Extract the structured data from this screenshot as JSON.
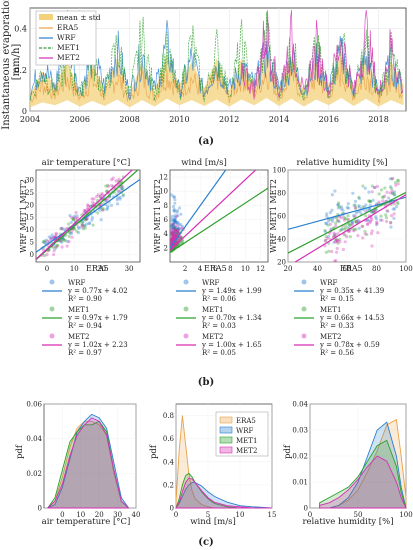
{
  "colors": {
    "era5": "#e8a24a",
    "band": "#f4d27a",
    "wrf": "#2a7fd1",
    "met1": "#2ca02c",
    "met2": "#d62fb5"
  },
  "panel_labels": {
    "a": "(a)",
    "b": "(b)",
    "c": "(c)"
  },
  "chart_data": [
    {
      "id": "a",
      "type": "line",
      "ylabel": "Instantaneous evaporation [mm/h]",
      "ylabel_lines": [
        "Instantaneous evaporation",
        "[mm/h]"
      ],
      "x_ticks": [
        "2004",
        "2006",
        "2008",
        "2010",
        "2012",
        "2014",
        "2016",
        "2018"
      ],
      "y_ticks": [
        "0",
        "0.2",
        "0.4"
      ],
      "ylim": [
        0,
        0.5
      ],
      "xlim": [
        2004,
        2019.1
      ],
      "legend": [
        "mean ± std",
        "ERA5",
        "WRF",
        "MET1",
        "MET2"
      ],
      "legend_position": "top-left",
      "series": [
        {
          "name": "ERA5",
          "x": [
            2004.0,
            2004.5,
            2005.0,
            2005.5,
            2006.0,
            2006.5,
            2007.0,
            2007.5,
            2008.0,
            2008.5,
            2009.0,
            2009.5,
            2010.0,
            2010.5,
            2011.0,
            2011.5,
            2012.0,
            2012.5,
            2013.0,
            2013.5,
            2014.0,
            2014.5,
            2015.0,
            2015.5,
            2016.0,
            2016.5,
            2017.0,
            2017.5,
            2018.0,
            2018.5,
            2019.0
          ],
          "y": [
            0.05,
            0.12,
            0.08,
            0.15,
            0.06,
            0.14,
            0.07,
            0.16,
            0.05,
            0.15,
            0.06,
            0.17,
            0.08,
            0.15,
            0.07,
            0.16,
            0.06,
            0.16,
            0.08,
            0.18,
            0.07,
            0.17,
            0.06,
            0.16,
            0.08,
            0.18,
            0.07,
            0.17,
            0.06,
            0.15,
            0.08
          ]
        },
        {
          "name": "WRF",
          "x": [
            2004.0,
            2004.5,
            2005.0,
            2005.5,
            2006.0,
            2006.5,
            2007.0,
            2007.5,
            2008.0,
            2008.5,
            2009.0,
            2009.5,
            2010.0,
            2010.5,
            2011.0,
            2011.5,
            2012.0,
            2012.5,
            2013.0,
            2013.5,
            2014.0,
            2014.5,
            2015.0,
            2015.5,
            2016.0,
            2016.5,
            2017.0,
            2017.5,
            2018.0,
            2018.5,
            2019.0
          ],
          "y": [
            0.08,
            0.22,
            0.1,
            0.4,
            0.09,
            0.25,
            0.11,
            0.28,
            0.08,
            0.26,
            0.1,
            0.3,
            0.09,
            0.24,
            0.08,
            0.22,
            0.1,
            0.2,
            0.12,
            0.26,
            0.1,
            0.24,
            0.09,
            0.22,
            0.11,
            0.26,
            0.1,
            0.24,
            0.09,
            0.22,
            0.1
          ]
        },
        {
          "name": "MET1",
          "x": [
            2004.0,
            2004.5,
            2005.0,
            2005.5,
            2006.0,
            2006.5,
            2007.0,
            2007.5,
            2008.0,
            2008.5,
            2009.0,
            2009.5,
            2010.0,
            2010.5,
            2011.0,
            2011.5,
            2012.0,
            2012.5,
            2013.0,
            2013.5,
            2014.0,
            2014.5,
            2015.0,
            2015.5,
            2016.0,
            2016.5,
            2017.0,
            2017.5,
            2018.0,
            2018.5,
            2019.0
          ],
          "y": [
            0.06,
            0.18,
            0.09,
            0.22,
            0.07,
            0.24,
            0.08,
            0.3,
            0.07,
            0.34,
            0.08,
            0.26,
            0.07,
            0.32,
            0.06,
            0.28,
            0.08,
            0.3,
            0.09,
            0.34,
            0.08,
            0.3,
            0.07,
            0.28,
            0.09,
            0.32,
            0.08,
            0.3,
            0.07,
            0.26,
            0.09
          ]
        },
        {
          "name": "MET2",
          "x": [
            2012.5,
            2013.0,
            2013.5,
            2014.0,
            2014.5,
            2015.0,
            2015.5,
            2016.0,
            2016.5,
            2017.0,
            2017.5,
            2018.0,
            2018.5,
            2019.0
          ],
          "y": [
            0.2,
            0.09,
            0.38,
            0.08,
            0.34,
            0.07,
            0.3,
            0.09,
            0.34,
            0.08,
            0.36,
            0.07,
            0.3,
            0.09
          ]
        }
      ]
    },
    {
      "id": "b1",
      "type": "scatter",
      "title": "air temperature [°C]",
      "xlabel": "ERA5",
      "ylabel": "WRF MET1 MET2",
      "x_ticks": [
        "0",
        "10",
        "20",
        "30"
      ],
      "y_ticks": [
        "0",
        "5",
        "10",
        "15",
        "20",
        "25",
        "30"
      ],
      "xlim": [
        -4,
        34
      ],
      "ylim": [
        -3,
        34
      ],
      "fits": [
        {
          "name": "WRF",
          "equation": "y = 0.77x + 4.02",
          "r2": "R² = 0.90",
          "slope": 0.77,
          "intercept": 4.02
        },
        {
          "name": "MET1",
          "equation": "y = 0.97x + 1.79",
          "r2": "R² = 0.94",
          "slope": 0.97,
          "intercept": 1.79
        },
        {
          "name": "MET2",
          "equation": "y = 1.02x + 2.23",
          "r2": "R² = 0.97",
          "slope": 1.02,
          "intercept": 2.23
        }
      ]
    },
    {
      "id": "b2",
      "type": "scatter",
      "title": "wind [m/s]",
      "xlabel": "ERA5",
      "ylabel": "WRF MET1 MET2",
      "x_ticks": [
        "2",
        "4",
        "6",
        "8",
        "10",
        "12"
      ],
      "y_ticks": [
        "2",
        "4",
        "6",
        "8",
        "10",
        "12"
      ],
      "xlim": [
        0,
        13
      ],
      "ylim": [
        0,
        13
      ],
      "fits": [
        {
          "name": "WRF",
          "equation": "y = 1.49x + 1.99",
          "r2": "R² = 0.06",
          "slope": 1.49,
          "intercept": 1.99
        },
        {
          "name": "MET1",
          "equation": "y = 0.70x + 1.34",
          "r2": "R² = 0.03",
          "slope": 0.7,
          "intercept": 1.34
        },
        {
          "name": "MET2",
          "equation": "y = 1.00x + 1.65",
          "r2": "R² = 0.05",
          "slope": 1.0,
          "intercept": 1.65
        }
      ]
    },
    {
      "id": "b3",
      "type": "scatter",
      "title": "relative humidity [%]",
      "xlabel": "ERA5",
      "ylabel": "WRF MET1 MET2",
      "x_ticks": [
        "20",
        "40",
        "60",
        "80",
        "100"
      ],
      "y_ticks": [
        "20",
        "40",
        "60",
        "80",
        "100"
      ],
      "xlim": [
        20,
        100
      ],
      "ylim": [
        20,
        100
      ],
      "fits": [
        {
          "name": "WRF",
          "equation": "y = 0.35x + 41.39",
          "r2": "R² = 0.15",
          "slope": 0.35,
          "intercept": 41.39
        },
        {
          "name": "MET1",
          "equation": "y = 0.66x + 14.53",
          "r2": "R² = 0.33",
          "slope": 0.66,
          "intercept": 14.53
        },
        {
          "name": "MET2",
          "equation": "y = 0.78x + 0.59",
          "r2": "R² = 0.56",
          "slope": 0.78,
          "intercept": 0.59
        }
      ]
    },
    {
      "id": "c1",
      "type": "area",
      "xlabel": "air temperature [°C]",
      "ylabel": "pdf",
      "x_ticks": [
        "0",
        "10",
        "20",
        "30",
        "40"
      ],
      "y_ticks": [
        "0",
        "0.02",
        "0.04",
        "0.06"
      ],
      "xlim": [
        -10,
        40
      ],
      "ylim": [
        0,
        0.06
      ],
      "x": [
        -8,
        -4,
        0,
        4,
        8,
        12,
        16,
        20,
        24,
        28,
        32,
        36
      ],
      "series": [
        {
          "name": "ERA5",
          "values": [
            0,
            0.004,
            0.018,
            0.035,
            0.046,
            0.05,
            0.05,
            0.048,
            0.042,
            0.02,
            0.004,
            0
          ]
        },
        {
          "name": "WRF",
          "values": [
            0,
            0.002,
            0.012,
            0.028,
            0.044,
            0.05,
            0.054,
            0.052,
            0.046,
            0.026,
            0.006,
            0
          ]
        },
        {
          "name": "MET1",
          "values": [
            0,
            0.006,
            0.022,
            0.038,
            0.044,
            0.048,
            0.048,
            0.05,
            0.044,
            0.022,
            0.004,
            0
          ]
        },
        {
          "name": "MET2",
          "values": [
            0,
            0.004,
            0.014,
            0.03,
            0.042,
            0.048,
            0.052,
            0.05,
            0.042,
            0.022,
            0.004,
            0
          ]
        }
      ]
    },
    {
      "id": "c2",
      "type": "area",
      "xlabel": "wind [m/s]",
      "ylabel": "pdf",
      "x_ticks": [
        "0",
        "5",
        "10",
        "15"
      ],
      "y_ticks": [
        "0",
        "0.2",
        "0.4",
        "0.6",
        "0.8"
      ],
      "xlim": [
        0,
        15
      ],
      "ylim": [
        0,
        0.9
      ],
      "legend": [
        "ERA5",
        "WRF",
        "MET1",
        "MET2"
      ],
      "legend_position": "top-right",
      "x": [
        0,
        0.5,
        1,
        1.5,
        2,
        2.5,
        3,
        4,
        5,
        6,
        8,
        10,
        12,
        15
      ],
      "series": [
        {
          "name": "ERA5",
          "values": [
            0.05,
            0.5,
            0.8,
            0.55,
            0.3,
            0.15,
            0.08,
            0.03,
            0.01,
            0,
            0,
            0,
            0,
            0
          ]
        },
        {
          "name": "WRF",
          "values": [
            0,
            0.04,
            0.1,
            0.16,
            0.2,
            0.22,
            0.22,
            0.19,
            0.14,
            0.1,
            0.05,
            0.02,
            0.01,
            0
          ]
        },
        {
          "name": "MET1",
          "values": [
            0,
            0.08,
            0.2,
            0.28,
            0.3,
            0.27,
            0.22,
            0.14,
            0.08,
            0.04,
            0.01,
            0,
            0,
            0
          ]
        },
        {
          "name": "MET2",
          "values": [
            0,
            0.05,
            0.14,
            0.22,
            0.26,
            0.25,
            0.22,
            0.15,
            0.09,
            0.05,
            0.02,
            0.01,
            0,
            0
          ]
        }
      ]
    },
    {
      "id": "c3",
      "type": "area",
      "xlabel": "relative humidity [%]",
      "ylabel": "pdf",
      "x_ticks": [
        "0",
        "50",
        "100"
      ],
      "y_ticks": [
        "0",
        "0.01",
        "0.02",
        "0.03",
        "0.04"
      ],
      "xlim": [
        0,
        100
      ],
      "ylim": [
        0,
        0.04
      ],
      "x": [
        10,
        20,
        30,
        40,
        50,
        60,
        70,
        80,
        90,
        95,
        100
      ],
      "series": [
        {
          "name": "ERA5",
          "values": [
            0,
            0,
            0.001,
            0.003,
            0.007,
            0.014,
            0.022,
            0.032,
            0.034,
            0.02,
            0.004
          ]
        },
        {
          "name": "WRF",
          "values": [
            0,
            0,
            0.001,
            0.004,
            0.01,
            0.02,
            0.03,
            0.033,
            0.02,
            0.008,
            0
          ]
        },
        {
          "name": "MET1",
          "values": [
            0.002,
            0.004,
            0.006,
            0.008,
            0.012,
            0.018,
            0.024,
            0.026,
            0.016,
            0.006,
            0
          ]
        },
        {
          "name": "MET2",
          "values": [
            0.001,
            0.002,
            0.004,
            0.007,
            0.011,
            0.016,
            0.02,
            0.018,
            0.01,
            0.004,
            0
          ]
        }
      ]
    }
  ]
}
